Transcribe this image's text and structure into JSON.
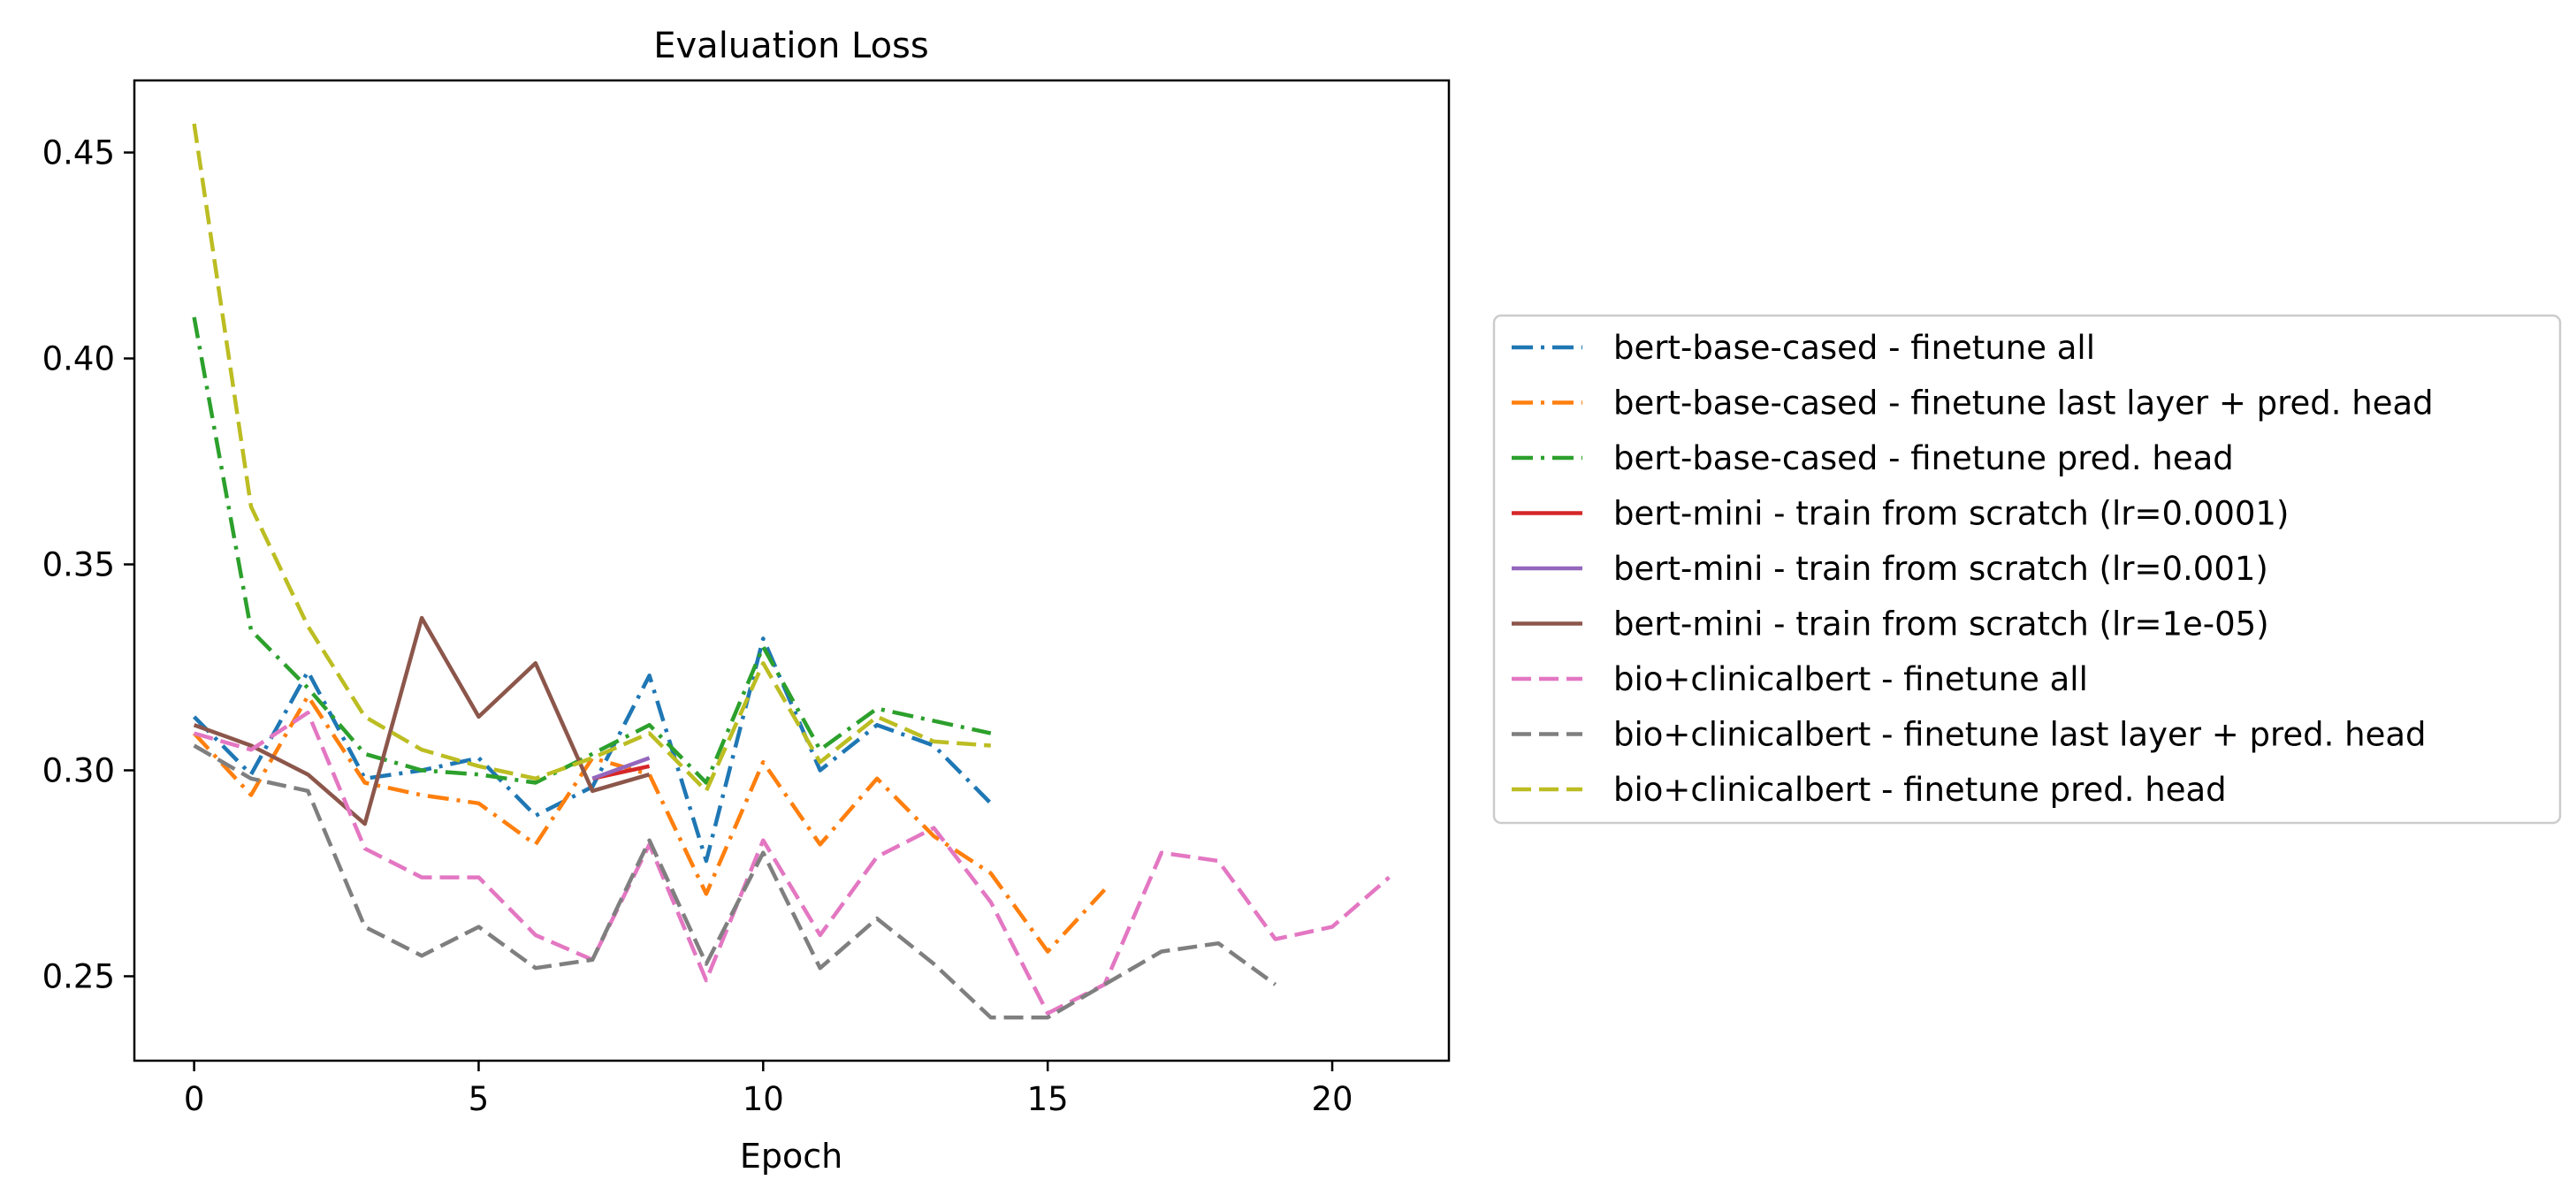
{
  "chart_data": {
    "type": "line",
    "title": "Evaluation Loss",
    "xlabel": "Epoch",
    "ylabel": "",
    "xlim": [
      -1.05,
      22.05
    ],
    "ylim": [
      0.2295,
      0.4675
    ],
    "xticks": [
      0,
      5,
      10,
      15,
      20
    ],
    "xtick_labels": [
      "0",
      "5",
      "10",
      "15",
      "20"
    ],
    "yticks": [
      0.25,
      0.3,
      0.35,
      0.4,
      0.45
    ],
    "ytick_labels": [
      "0.25",
      "0.30",
      "0.35",
      "0.40",
      "0.45"
    ],
    "grid": false,
    "legend_position": "outside right",
    "series": [
      {
        "name": "bert-base-cased - finetune all",
        "color": "#1f77b4",
        "style": "dashdot",
        "x": [
          0,
          1,
          2,
          3,
          4,
          5,
          6,
          7,
          8,
          9,
          10,
          11,
          12,
          13,
          14
        ],
        "y": [
          0.313,
          0.299,
          0.324,
          0.298,
          0.3,
          0.303,
          0.289,
          0.296,
          0.323,
          0.278,
          0.332,
          0.3,
          0.311,
          0.306,
          0.292
        ]
      },
      {
        "name": "bert-base-cased - finetune last layer + pred. head",
        "color": "#ff7f0e",
        "style": "dashdot",
        "x": [
          0,
          1,
          2,
          3,
          4,
          5,
          6,
          7,
          8,
          9,
          10,
          11,
          12,
          13,
          14,
          15,
          16
        ],
        "y": [
          0.309,
          0.294,
          0.318,
          0.297,
          0.294,
          0.292,
          0.282,
          0.303,
          0.299,
          0.27,
          0.302,
          0.282,
          0.298,
          0.284,
          0.275,
          0.256,
          0.271
        ]
      },
      {
        "name": "bert-base-cased - finetune pred. head",
        "color": "#2ca02c",
        "style": "dashdot",
        "x": [
          0,
          1,
          2,
          3,
          4,
          5,
          6,
          7,
          8,
          9,
          10,
          11,
          12,
          13,
          14
        ],
        "y": [
          0.41,
          0.334,
          0.32,
          0.304,
          0.3,
          0.299,
          0.297,
          0.304,
          0.311,
          0.297,
          0.33,
          0.305,
          0.315,
          0.312,
          0.309
        ]
      },
      {
        "name": "bert-mini - train from scratch (lr=0.0001)",
        "color": "#d62728",
        "style": "solid",
        "x": [
          7,
          8
        ],
        "y": [
          0.298,
          0.301
        ]
      },
      {
        "name": "bert-mini - train from scratch (lr=0.001)",
        "color": "#9467bd",
        "style": "solid",
        "x": [
          7,
          8
        ],
        "y": [
          0.298,
          0.303
        ]
      },
      {
        "name": "bert-mini - train from scratch (lr=1e-05)",
        "color": "#8c564b",
        "style": "solid",
        "x": [
          0,
          1,
          2,
          3,
          4,
          5,
          6,
          7,
          8
        ],
        "y": [
          0.311,
          0.306,
          0.299,
          0.287,
          0.337,
          0.313,
          0.326,
          0.295,
          0.299
        ]
      },
      {
        "name": "bio+clinicalbert - finetune all",
        "color": "#e377c2",
        "style": "dashed",
        "x": [
          0,
          1,
          2,
          3,
          4,
          5,
          6,
          7,
          8,
          9,
          10,
          11,
          12,
          13,
          14,
          15,
          16,
          17,
          18,
          19,
          20,
          21
        ],
        "y": [
          0.309,
          0.305,
          0.314,
          0.281,
          0.274,
          0.274,
          0.26,
          0.254,
          0.282,
          0.249,
          0.283,
          0.26,
          0.279,
          0.286,
          0.268,
          0.241,
          0.248,
          0.28,
          0.278,
          0.259,
          0.262,
          0.274
        ]
      },
      {
        "name": "bio+clinicalbert - finetune last layer + pred. head",
        "color": "#7f7f7f",
        "style": "dashed",
        "x": [
          0,
          1,
          2,
          3,
          4,
          5,
          6,
          7,
          8,
          9,
          10,
          11,
          12,
          13,
          14,
          15,
          16,
          17,
          18,
          19
        ],
        "y": [
          0.306,
          0.298,
          0.295,
          0.262,
          0.255,
          0.262,
          0.252,
          0.254,
          0.283,
          0.253,
          0.28,
          0.252,
          0.264,
          0.253,
          0.24,
          0.24,
          0.248,
          0.256,
          0.258,
          0.248
        ]
      },
      {
        "name": "bio+clinicalbert - finetune pred. head",
        "color": "#bcbd22",
        "style": "dashed",
        "x": [
          0,
          1,
          2,
          3,
          4,
          5,
          6,
          7,
          8,
          9,
          10,
          11,
          12,
          13,
          14
        ],
        "y": [
          0.457,
          0.364,
          0.335,
          0.313,
          0.305,
          0.301,
          0.298,
          0.303,
          0.309,
          0.295,
          0.326,
          0.302,
          0.313,
          0.307,
          0.306
        ]
      }
    ]
  }
}
